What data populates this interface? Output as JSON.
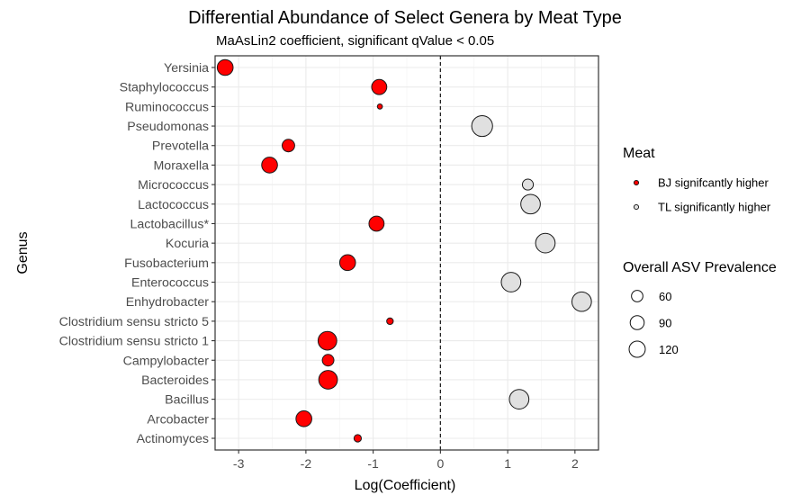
{
  "chart_data": {
    "type": "scatter",
    "title": "Differential Abundance of Select Genera by Meat Type",
    "subtitle": "MaAsLin2 coefficient, significant qValue < 0.05",
    "xlabel": "Log(Coefficient)",
    "ylabel": "Genus",
    "xlim": [
      -3.35,
      2.35
    ],
    "x_ticks": [
      -3,
      -2,
      -1,
      0,
      1,
      2
    ],
    "x_tick_labels": [
      "-3",
      "-2",
      "-1",
      "0",
      "1",
      "2"
    ],
    "grid": true,
    "reference_line": {
      "x": 0,
      "style": "dashed"
    },
    "categories": [
      "Yersinia",
      "Staphylococcus",
      "Ruminococcus",
      "Pseudomonas",
      "Prevotella",
      "Moraxella",
      "Micrococcus",
      "Lactococcus",
      "Lactobacillus*",
      "Kocuria",
      "Fusobacterium",
      "Enterococcus",
      "Enhydrobacter",
      "Clostridium sensu stricto 5",
      "Clostridium sensu stricto 1",
      "Campylobacter",
      "Bacteroides",
      "Bacillus",
      "Arcobacter",
      "Actinomyces"
    ],
    "points": [
      {
        "genus": "Yersinia",
        "coefficient": -3.2,
        "meat": "BJ",
        "prevalence": 115
      },
      {
        "genus": "Staphylococcus",
        "coefficient": -0.91,
        "meat": "BJ",
        "prevalence": 105
      },
      {
        "genus": "Ruminococcus",
        "coefficient": -0.9,
        "meat": "BJ",
        "prevalence": 12
      },
      {
        "genus": "Pseudomonas",
        "coefficient": 0.62,
        "meat": "TL",
        "prevalence": 200
      },
      {
        "genus": "Prevotella",
        "coefficient": -2.26,
        "meat": "BJ",
        "prevalence": 72
      },
      {
        "genus": "Moraxella",
        "coefficient": -2.54,
        "meat": "BJ",
        "prevalence": 115
      },
      {
        "genus": "Micrococcus",
        "coefficient": 1.3,
        "meat": "TL",
        "prevalence": 55
      },
      {
        "genus": "Lactococcus",
        "coefficient": 1.34,
        "meat": "TL",
        "prevalence": 175
      },
      {
        "genus": "Lactobacillus*",
        "coefficient": -0.95,
        "meat": "BJ",
        "prevalence": 105
      },
      {
        "genus": "Kocuria",
        "coefficient": 1.56,
        "meat": "TL",
        "prevalence": 175
      },
      {
        "genus": "Fusobacterium",
        "coefficient": -1.38,
        "meat": "BJ",
        "prevalence": 115
      },
      {
        "genus": "Enterococcus",
        "coefficient": 1.05,
        "meat": "TL",
        "prevalence": 175
      },
      {
        "genus": "Enhydrobacter",
        "coefficient": 2.1,
        "meat": "TL",
        "prevalence": 175
      },
      {
        "genus": "Clostridium sensu stricto 5",
        "coefficient": -0.75,
        "meat": "BJ",
        "prevalence": 20
      },
      {
        "genus": "Clostridium sensu stricto 1",
        "coefficient": -1.68,
        "meat": "BJ",
        "prevalence": 160
      },
      {
        "genus": "Campylobacter",
        "coefficient": -1.67,
        "meat": "BJ",
        "prevalence": 62
      },
      {
        "genus": "Bacteroides",
        "coefficient": -1.67,
        "meat": "BJ",
        "prevalence": 160
      },
      {
        "genus": "Bacillus",
        "coefficient": 1.17,
        "meat": "TL",
        "prevalence": 175
      },
      {
        "genus": "Arcobacter",
        "coefficient": -2.03,
        "meat": "BJ",
        "prevalence": 115
      },
      {
        "genus": "Actinomyces",
        "coefficient": -1.23,
        "meat": "BJ",
        "prevalence": 25
      }
    ],
    "legend": {
      "placement": "right",
      "color_title": "Meat",
      "color_entries": [
        {
          "label": "BJ signifcantly higher",
          "key": "BJ",
          "color": "#ff0000"
        },
        {
          "label": "TL significantly higher",
          "key": "TL",
          "color": "#e0e0e0"
        }
      ],
      "size_title": "Overall ASV Prevalence",
      "size_entries": [
        {
          "label": "60",
          "value": 60
        },
        {
          "label": "90",
          "value": 90
        },
        {
          "label": "120",
          "value": 120
        }
      ]
    },
    "colors": {
      "BJ": "#ff0000",
      "TL": "#e0e0e0",
      "outline": "#1a1a1a"
    }
  }
}
